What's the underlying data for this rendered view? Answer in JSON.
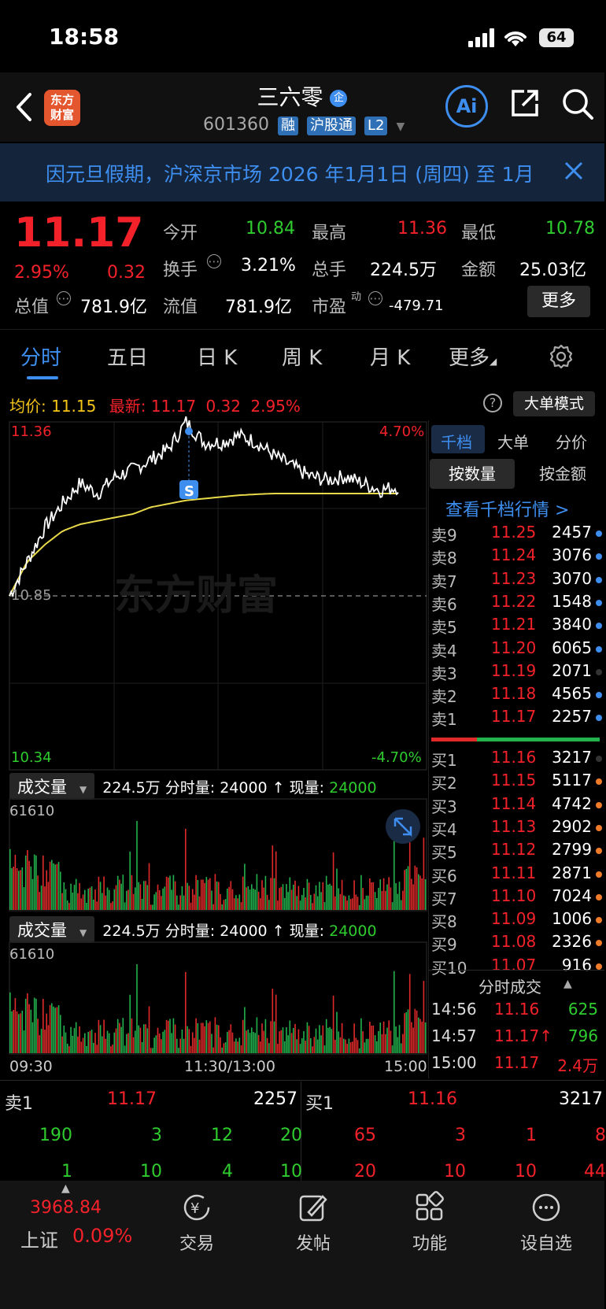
{
  "status_bar": {
    "time": "18:58",
    "battery": "64"
  },
  "header": {
    "logo_line1": "东方",
    "logo_line2": "财富",
    "stock_name": "三六零",
    "name_badge": "企",
    "stock_code": "601360",
    "tags": [
      "融",
      "沪股通",
      "L2"
    ],
    "ai_label": "Ai"
  },
  "notice": {
    "text": "因元旦假期，沪深京市场 2026 年1月1日 (周四) 至 1月"
  },
  "quote": {
    "price": "11.17",
    "change_pct": "2.95%",
    "change": "0.32",
    "open_label": "今开",
    "open": "10.84",
    "high_label": "最高",
    "high": "11.36",
    "low_label": "最低",
    "low": "10.78",
    "turnover_label": "换手",
    "turnover": "3.21%",
    "volume_label": "总手",
    "volume": "224.5万",
    "amount_label": "金额",
    "amount": "25.03亿",
    "mcap_label": "总值",
    "mcap": "781.9亿",
    "float_label": "流值",
    "float_cap": "781.9亿",
    "pe_label": "市盈",
    "pe_sup": "动",
    "pe": "-479.71",
    "more": "更多"
  },
  "tabs": [
    "分时",
    "五日",
    "日 K",
    "周 K",
    "月 K",
    "更多"
  ],
  "chart_info": {
    "avg_label": "均价:",
    "avg": "11.15",
    "latest_label": "最新:",
    "latest": "11.17",
    "latest_change": "0.32",
    "latest_pct": "2.95%",
    "big_order_mode": "大单模式"
  },
  "chart": {
    "y_top": "11.36",
    "y_mid": "10.85",
    "y_bottom": "10.34",
    "pct_top": "4.70%",
    "pct_bottom": "-4.70%",
    "watermark": "东方财富",
    "sell_marker": "S",
    "x_labels": [
      "09:30",
      "11:30/13:00",
      "15:00"
    ]
  },
  "chart_data": {
    "type": "line",
    "ylim": [
      10.34,
      11.36
    ],
    "series": [
      {
        "values": [
          10.85,
          10.95,
          11.05,
          11.12,
          11.18,
          11.15,
          11.2,
          11.22,
          11.25,
          11.28,
          11.36,
          11.3,
          11.3,
          11.32,
          11.3,
          11.26,
          11.23,
          11.2,
          11.19,
          11.2,
          11.18,
          11.16,
          11.17
        ]
      },
      {
        "values": [
          10.85,
          10.95,
          11.0,
          11.04,
          11.06,
          11.07,
          11.08,
          11.09,
          11.11,
          11.12,
          11.13,
          11.135,
          11.14,
          11.145,
          11.148,
          11.15,
          11.15,
          11.15,
          11.15,
          11.15,
          11.15,
          11.15,
          11.15
        ]
      }
    ]
  },
  "volume_panels": [
    {
      "label": "成交量",
      "total": "224.5万",
      "tick_label": "分时量:",
      "tick": "24000",
      "now_label": "现量:",
      "now": "24000",
      "max": "61610"
    },
    {
      "label": "成交量",
      "total": "224.5万",
      "tick_label": "分时量:",
      "tick": "24000",
      "now_label": "现量:",
      "now": "24000",
      "max": "61610"
    }
  ],
  "right_panel": {
    "tabs": [
      "千档",
      "大单",
      "分价"
    ],
    "by_qty": "按数量",
    "by_amount": "按金额",
    "view_depth": "查看千档行情 >",
    "asks": [
      {
        "label": "卖9",
        "price": "11.25",
        "vol": "2457"
      },
      {
        "label": "卖8",
        "price": "11.24",
        "vol": "3076"
      },
      {
        "label": "卖7",
        "price": "11.23",
        "vol": "3070"
      },
      {
        "label": "卖6",
        "price": "11.22",
        "vol": "1548"
      },
      {
        "label": "卖5",
        "price": "11.21",
        "vol": "3840"
      },
      {
        "label": "卖4",
        "price": "11.20",
        "vol": "6065"
      },
      {
        "label": "卖3",
        "price": "11.19",
        "vol": "2071"
      },
      {
        "label": "卖2",
        "price": "11.18",
        "vol": "4565"
      },
      {
        "label": "卖1",
        "price": "11.17",
        "vol": "2257"
      }
    ],
    "bids": [
      {
        "label": "买1",
        "price": "11.16",
        "vol": "3217"
      },
      {
        "label": "买2",
        "price": "11.15",
        "vol": "5117"
      },
      {
        "label": "买3",
        "price": "11.14",
        "vol": "4742"
      },
      {
        "label": "买4",
        "price": "11.13",
        "vol": "2902"
      },
      {
        "label": "买5",
        "price": "11.12",
        "vol": "2799"
      },
      {
        "label": "买6",
        "price": "11.11",
        "vol": "2871"
      },
      {
        "label": "买7",
        "price": "11.10",
        "vol": "7024"
      },
      {
        "label": "买8",
        "price": "11.09",
        "vol": "1006"
      },
      {
        "label": "买9",
        "price": "11.08",
        "vol": "2326"
      },
      {
        "label": "买10",
        "price": "11.07",
        "vol": "916"
      }
    ],
    "ticks_title": "分时成交",
    "ticks": [
      {
        "time": "14:56",
        "price": "11.16",
        "vol": "625"
      },
      {
        "time": "14:57",
        "price": "11.17↑",
        "vol": "796"
      },
      {
        "time": "15:00",
        "price": "11.17",
        "vol": "2.4万"
      }
    ]
  },
  "bottom_book": {
    "ask_label": "卖1",
    "ask_price": "11.17",
    "ask_vol": "2257",
    "bid_label": "买1",
    "bid_price": "11.16",
    "bid_vol": "3217",
    "ask_queue_row1": [
      "190",
      "3",
      "12",
      "20"
    ],
    "ask_queue_row2": [
      "1",
      "10",
      "4",
      "10"
    ],
    "bid_queue_row1": [
      "65",
      "3",
      "1",
      "8"
    ],
    "bid_queue_row2": [
      "20",
      "10",
      "10",
      "44"
    ]
  },
  "bottom_nav": {
    "index_value": "3968.84",
    "index_name": "上证",
    "index_pct": "0.09%",
    "items": [
      "交易",
      "发帖",
      "功能",
      "设自选"
    ]
  }
}
